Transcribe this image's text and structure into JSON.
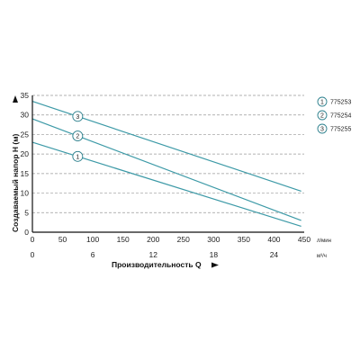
{
  "chart_data": {
    "type": "line",
    "xlabel": "Производительность Q",
    "ylabel": "Создаваемый напор H (м)",
    "x_unit": "л/мин",
    "x2_unit": "м³/ч",
    "xlim": [
      0,
      450
    ],
    "ylim": [
      0,
      35
    ],
    "x_ticks": [
      0,
      50,
      100,
      150,
      200,
      250,
      300,
      350,
      400,
      450
    ],
    "y_ticks": [
      0,
      5,
      10,
      15,
      20,
      25,
      30,
      35
    ],
    "x2_ticks": [
      {
        "value": 0,
        "label": "0"
      },
      {
        "value": 6,
        "label": "6"
      },
      {
        "value": 12,
        "label": "12"
      },
      {
        "value": 18,
        "label": "18"
      },
      {
        "value": 24,
        "label": "24"
      }
    ],
    "grid": "horizontal dashed",
    "legend_position": "right",
    "colors": {
      "line": "#3d9aa7",
      "badge_stroke": "#2b7f8c",
      "grid": "#999999"
    },
    "series": [
      {
        "name": "775253",
        "badge": "1",
        "x": [
          0,
          445
        ],
        "y": [
          23,
          1.5
        ]
      },
      {
        "name": "775254",
        "badge": "2",
        "x": [
          0,
          445
        ],
        "y": [
          29,
          3
        ]
      },
      {
        "name": "775255",
        "badge": "3",
        "x": [
          0,
          445
        ],
        "y": [
          33.5,
          10.5
        ]
      }
    ]
  }
}
